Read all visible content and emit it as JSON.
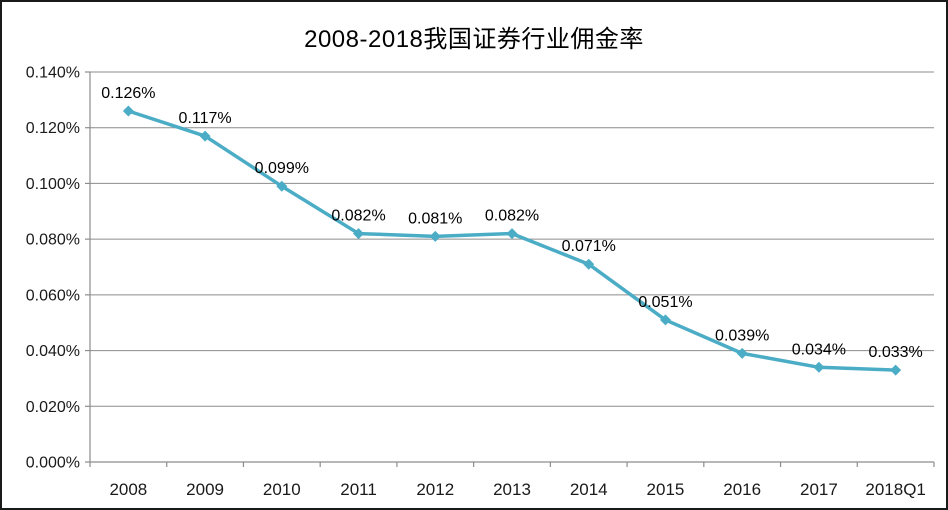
{
  "chart_data": {
    "type": "line",
    "title": "2008-2018我国证券行业佣金率",
    "categories": [
      "2008",
      "2009",
      "2010",
      "2011",
      "2012",
      "2013",
      "2014",
      "2015",
      "2016",
      "2017",
      "2018Q1"
    ],
    "series": [
      {
        "name": "佣金率",
        "values": [
          0.126,
          0.117,
          0.099,
          0.082,
          0.081,
          0.082,
          0.071,
          0.051,
          0.039,
          0.034,
          0.033
        ],
        "data_labels": [
          "0.126%",
          "0.117%",
          "0.099%",
          "0.082%",
          "0.081%",
          "0.082%",
          "0.071%",
          "0.051%",
          "0.039%",
          "0.034%",
          "0.033%"
        ]
      }
    ],
    "xlabel": "",
    "ylabel": "",
    "ylim": [
      0,
      0.14
    ],
    "y_tick_step": 0.02,
    "y_tick_labels": [
      "0.140%",
      "0.120%",
      "0.100%",
      "0.080%",
      "0.060%",
      "0.040%",
      "0.020%",
      "0.000%"
    ],
    "grid": true,
    "legend_position": "none",
    "marker": "diamond",
    "colors": {
      "line": "#4BACC6",
      "marker": "#4BACC6",
      "gridline": "#8C8C8C",
      "axis": "#8C8C8C",
      "label_text": "#000000",
      "tick_text": "#1a1a1a",
      "background": "#FFFFFF",
      "frame_border": "#1a1a1a"
    }
  }
}
